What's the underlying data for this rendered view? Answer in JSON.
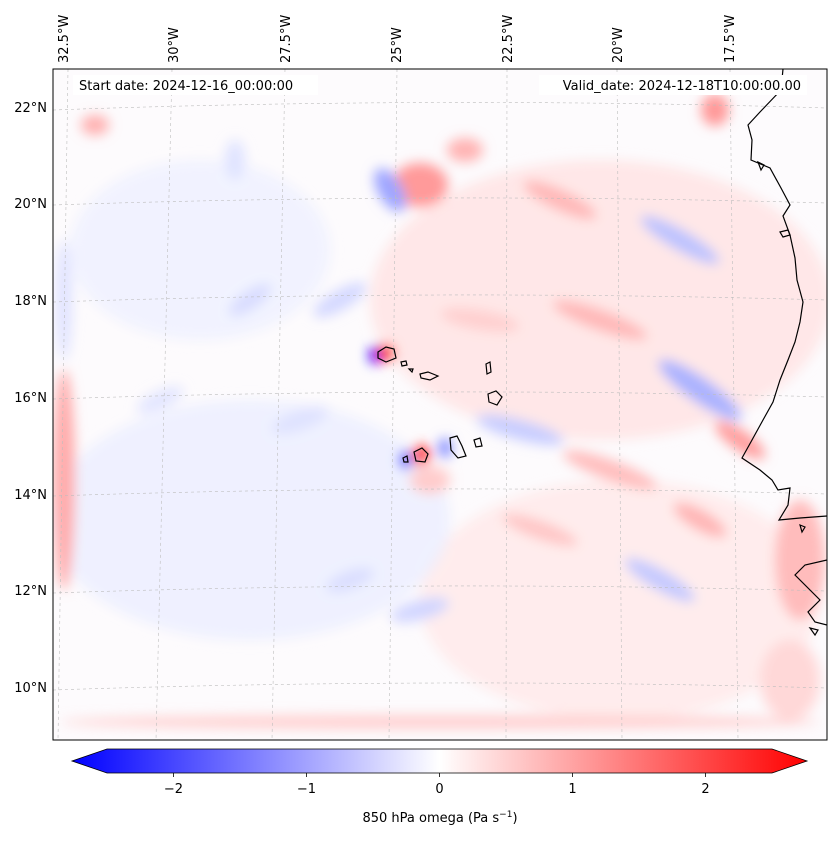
{
  "map": {
    "start_date": "Start date: 2024-12-16_00:00:00",
    "valid_date": "Valid_date: 2024-12-18T10:00:00.00",
    "lon_labels": [
      "32.5°W",
      "30°W",
      "27.5°W",
      "25°W",
      "22.5°W",
      "20°W",
      "17.5°W"
    ],
    "lat_labels": [
      "22°N",
      "20°N",
      "18°N",
      "16°N",
      "14°N",
      "12°N",
      "10°N"
    ]
  },
  "colorbar": {
    "ticks": [
      "−2",
      "−1",
      "0",
      "1",
      "2"
    ],
    "tick_values": [
      -2,
      -1,
      0,
      1,
      2
    ],
    "range": [
      -2.5,
      2.5
    ],
    "label_main": "850 hPa omega (Pa s",
    "label_sup": "−1",
    "label_end": ")",
    "colors": {
      "negative": "#0000ff",
      "zero": "#ffffff",
      "positive": "#ff0000"
    }
  }
}
